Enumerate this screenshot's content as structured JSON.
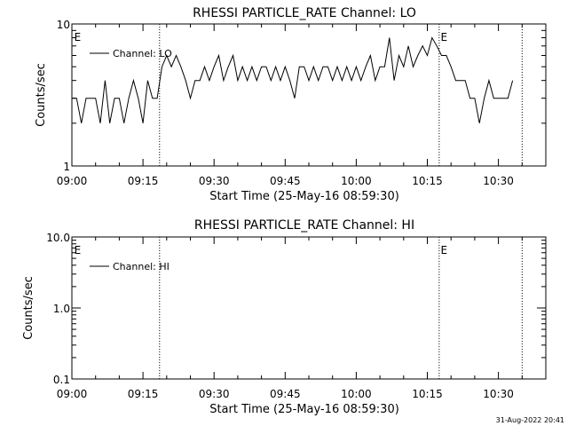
{
  "footer": {
    "timestamp": "31-Aug-2022 20:41"
  },
  "chart_data": [
    {
      "type": "line",
      "title": "RHESSI PARTICLE_RATE Channel: LO",
      "xlabel": "Start Time (25-May-16 08:59:30)",
      "ylabel": "Counts/sec",
      "yscale": "log",
      "ylim": [
        1,
        10
      ],
      "ytick_values": [
        1,
        10
      ],
      "ytick_labels": [
        "1",
        "10"
      ],
      "xlim_minutes": [
        0,
        100
      ],
      "xtick_minutes": [
        0,
        15,
        30,
        45,
        60,
        75,
        90
      ],
      "xtick_labels": [
        "09:00",
        "09:15",
        "09:30",
        "09:45",
        "10:00",
        "10:15",
        "10:30"
      ],
      "event_lines_minutes": [
        18.5,
        77.5,
        95.0
      ],
      "event_markers": [
        {
          "label": "E",
          "at_minute": 0.5
        },
        {
          "label": "E",
          "at_minute": 77.8
        }
      ],
      "legend": {
        "label": "Channel: LO",
        "placement": "top-left"
      },
      "series": [
        {
          "name": "Channel: LO",
          "points": [
            [
              0,
              3
            ],
            [
              1,
              3
            ],
            [
              2,
              2
            ],
            [
              3,
              3
            ],
            [
              4,
              3
            ],
            [
              5,
              3
            ],
            [
              6,
              2
            ],
            [
              7,
              4
            ],
            [
              8,
              2
            ],
            [
              9,
              3
            ],
            [
              10,
              3
            ],
            [
              11,
              2
            ],
            [
              12,
              3
            ],
            [
              13,
              4
            ],
            [
              14,
              3
            ],
            [
              15,
              2
            ],
            [
              16,
              4
            ],
            [
              17,
              3
            ],
            [
              18,
              3
            ],
            [
              19,
              5
            ],
            [
              20,
              6
            ],
            [
              21,
              5
            ],
            [
              22,
              6
            ],
            [
              23,
              5
            ],
            [
              24,
              4
            ],
            [
              25,
              3
            ],
            [
              26,
              4
            ],
            [
              27,
              4
            ],
            [
              28,
              5
            ],
            [
              29,
              4
            ],
            [
              30,
              5
            ],
            [
              31,
              6
            ],
            [
              32,
              4
            ],
            [
              33,
              5
            ],
            [
              34,
              6
            ],
            [
              35,
              4
            ],
            [
              36,
              5
            ],
            [
              37,
              4
            ],
            [
              38,
              5
            ],
            [
              39,
              4
            ],
            [
              40,
              5
            ],
            [
              41,
              5
            ],
            [
              42,
              4
            ],
            [
              43,
              5
            ],
            [
              44,
              4
            ],
            [
              45,
              5
            ],
            [
              46,
              4
            ],
            [
              47,
              3
            ],
            [
              48,
              5
            ],
            [
              49,
              5
            ],
            [
              50,
              4
            ],
            [
              51,
              5
            ],
            [
              52,
              4
            ],
            [
              53,
              5
            ],
            [
              54,
              5
            ],
            [
              55,
              4
            ],
            [
              56,
              5
            ],
            [
              57,
              4
            ],
            [
              58,
              5
            ],
            [
              59,
              4
            ],
            [
              60,
              5
            ],
            [
              61,
              4
            ],
            [
              62,
              5
            ],
            [
              63,
              6
            ],
            [
              64,
              4
            ],
            [
              65,
              5
            ],
            [
              66,
              5
            ],
            [
              67,
              8
            ],
            [
              68,
              4
            ],
            [
              69,
              6
            ],
            [
              70,
              5
            ],
            [
              71,
              7
            ],
            [
              72,
              5
            ],
            [
              73,
              6
            ],
            [
              74,
              7
            ],
            [
              75,
              6
            ],
            [
              76,
              8
            ],
            [
              77,
              7
            ],
            [
              78,
              6
            ],
            [
              79,
              6
            ],
            [
              80,
              5
            ],
            [
              81,
              4
            ],
            [
              82,
              4
            ],
            [
              83,
              4
            ],
            [
              84,
              3
            ],
            [
              85,
              3
            ],
            [
              86,
              2
            ],
            [
              87,
              3
            ],
            [
              88,
              4
            ],
            [
              89,
              3
            ],
            [
              90,
              3
            ],
            [
              91,
              3
            ],
            [
              92,
              3
            ],
            [
              93,
              4
            ]
          ]
        }
      ]
    },
    {
      "type": "line",
      "title": "RHESSI PARTICLE_RATE Channel: HI",
      "xlabel": "Start Time (25-May-16 08:59:30)",
      "ylabel": "Counts/sec",
      "yscale": "log",
      "ylim": [
        0.1,
        10
      ],
      "ytick_values": [
        0.1,
        1,
        10
      ],
      "ytick_labels": [
        "0.1",
        "1.0",
        "10.0"
      ],
      "xlim_minutes": [
        0,
        100
      ],
      "xtick_minutes": [
        0,
        15,
        30,
        45,
        60,
        75,
        90
      ],
      "xtick_labels": [
        "09:00",
        "09:15",
        "09:30",
        "09:45",
        "10:00",
        "10:15",
        "10:30"
      ],
      "event_lines_minutes": [
        18.5,
        77.5,
        95.0
      ],
      "event_markers": [
        {
          "label": "E",
          "at_minute": 0.5
        },
        {
          "label": "E",
          "at_minute": 77.8
        }
      ],
      "legend": {
        "label": "Channel: HI",
        "placement": "top-left"
      },
      "series": [
        {
          "name": "Channel: HI",
          "points": []
        }
      ]
    }
  ]
}
